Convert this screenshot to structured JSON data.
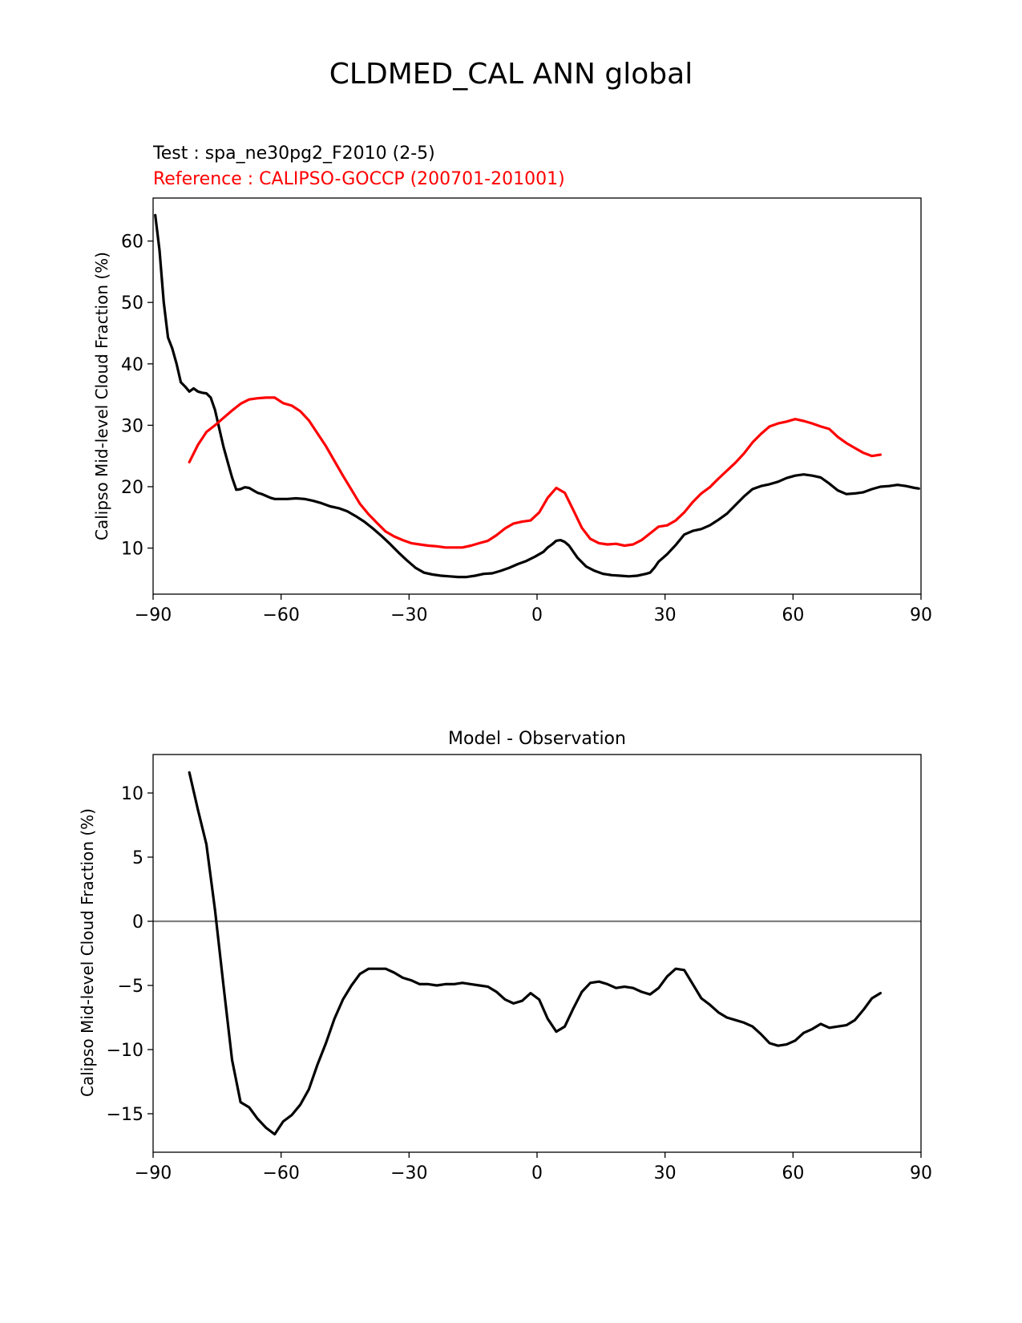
{
  "figure": {
    "title": "CLDMED_CAL ANN global",
    "colors": {
      "test": "#000000",
      "reference": "#ff0000",
      "zero_line": "#808080"
    }
  },
  "chart_data": [
    {
      "type": "line",
      "test_label": "Test : spa_ne30pg2_F2010 (2-5)",
      "reference_label": "Reference : CALIPSO-GOCCP (200701-201001)",
      "xlabel": "",
      "ylabel": "Calipso Mid-level Cloud Fraction (%)",
      "xlim": [
        -90,
        90
      ],
      "ylim": [
        2.5,
        67
      ],
      "xticks": [
        -90,
        -60,
        -30,
        0,
        30,
        60,
        90
      ],
      "yticks": [
        10,
        20,
        30,
        40,
        50,
        60
      ],
      "series": [
        {
          "name": "test",
          "x": [
            -89.5,
            -88.5,
            -87.5,
            -86.5,
            -85.5,
            -84.5,
            -83.5,
            -82.5,
            -81.5,
            -80.5,
            -79.5,
            -78.5,
            -77.5,
            -76.5,
            -75.5,
            -74.5,
            -73.5,
            -72.5,
            -71.5,
            -70.5,
            -69.5,
            -68.5,
            -67.5,
            -66.5,
            -65.5,
            -64.5,
            -63.5,
            -62.5,
            -61.5,
            -60.5,
            -58.5,
            -56.5,
            -54.5,
            -52.5,
            -50.5,
            -48.5,
            -46.5,
            -44.5,
            -42.5,
            -40.5,
            -38.5,
            -36.5,
            -34.5,
            -32.5,
            -30.5,
            -28.5,
            -26.5,
            -24.5,
            -22.5,
            -20.5,
            -18.5,
            -16.5,
            -14.5,
            -12.5,
            -10.5,
            -8.5,
            -6.5,
            -4.5,
            -2.5,
            -0.5,
            1.5,
            2.5,
            3.5,
            4.5,
            5.5,
            6.5,
            7.5,
            9.5,
            11.5,
            13.5,
            15.5,
            17.5,
            19.5,
            21.5,
            23.5,
            25.5,
            26.5,
            27.5,
            28.5,
            30.5,
            32.5,
            34.5,
            36.5,
            38.5,
            40.5,
            42.5,
            44.5,
            46.5,
            48.5,
            50.5,
            52.5,
            54.5,
            56.5,
            58.5,
            60.5,
            62.5,
            64.5,
            66.5,
            68.5,
            70.5,
            72.5,
            74.5,
            76.5,
            78.5,
            80.5,
            82.5,
            84.5,
            86.5,
            88.5,
            89.5
          ],
          "values": [
            64.2,
            58.5,
            50,
            44.3,
            42.5,
            40,
            37,
            36.3,
            35.5,
            36,
            35.5,
            35.3,
            35.2,
            34.5,
            32.5,
            29.5,
            26.5,
            24,
            21.5,
            19.5,
            19.6,
            19.9,
            19.8,
            19.4,
            19,
            18.8,
            18.5,
            18.2,
            18,
            18,
            18,
            18.1,
            18,
            17.7,
            17.3,
            16.8,
            16.5,
            16,
            15.2,
            14.3,
            13.2,
            12,
            10.7,
            9.3,
            8,
            6.8,
            6,
            5.7,
            5.5,
            5.4,
            5.3,
            5.3,
            5.5,
            5.8,
            5.9,
            6.3,
            6.8,
            7.4,
            7.9,
            8.6,
            9.4,
            10.1,
            10.6,
            11.2,
            11.3,
            11,
            10.4,
            8.4,
            7,
            6.3,
            5.8,
            5.6,
            5.5,
            5.4,
            5.5,
            5.8,
            6,
            6.8,
            7.8,
            9,
            10.5,
            12.2,
            12.8,
            13.1,
            13.7,
            14.6,
            15.6,
            17,
            18.4,
            19.6,
            20.1,
            20.4,
            20.8,
            21.4,
            21.8,
            22,
            21.8,
            21.5,
            20.5,
            19.4,
            18.8,
            18.9,
            19.1,
            19.6,
            20,
            20.1,
            20.3,
            20.1,
            19.8,
            19.7
          ]
        },
        {
          "name": "reference",
          "x": [
            -81.5,
            -79.5,
            -77.5,
            -75.5,
            -73.5,
            -71.5,
            -69.5,
            -67.5,
            -65.5,
            -63.5,
            -61.5,
            -59.5,
            -57.5,
            -55.5,
            -53.5,
            -51.5,
            -49.5,
            -47.5,
            -45.5,
            -43.5,
            -41.5,
            -39.5,
            -37.5,
            -35.5,
            -33.5,
            -31.5,
            -29.5,
            -27.5,
            -25.5,
            -23.5,
            -21.5,
            -19.5,
            -17.5,
            -15.5,
            -13.5,
            -11.5,
            -9.5,
            -7.5,
            -5.5,
            -3.5,
            -1.5,
            0.5,
            2.5,
            4.5,
            6.5,
            8.5,
            10.5,
            12.5,
            14.5,
            16.5,
            18.5,
            20.5,
            22.5,
            24.5,
            26.5,
            28.5,
            30.5,
            32.5,
            34.5,
            36.5,
            38.5,
            40.5,
            42.5,
            44.5,
            46.5,
            48.5,
            50.5,
            52.5,
            54.5,
            56.5,
            58.5,
            60.5,
            62.5,
            64.5,
            66.5,
            68.5,
            70.5,
            72.5,
            74.5,
            76.5,
            78.5,
            80.5
          ],
          "values": [
            24,
            26.8,
            28.9,
            30,
            31.2,
            32.4,
            33.5,
            34.2,
            34.4,
            34.5,
            34.5,
            33.6,
            33.2,
            32.3,
            30.8,
            28.7,
            26.6,
            24.2,
            21.8,
            19.5,
            17.2,
            15.5,
            14.1,
            12.7,
            11.9,
            11.3,
            10.8,
            10.6,
            10.4,
            10.3,
            10.1,
            10.1,
            10.1,
            10.4,
            10.8,
            11.2,
            12.1,
            13.2,
            14,
            14.3,
            14.5,
            15.8,
            18.2,
            19.8,
            19,
            16.2,
            13.3,
            11.5,
            10.8,
            10.6,
            10.7,
            10.4,
            10.6,
            11.3,
            12.4,
            13.5,
            13.7,
            14.5,
            15.8,
            17.5,
            18.9,
            19.9,
            21.3,
            22.6,
            23.9,
            25.4,
            27.2,
            28.6,
            29.8,
            30.3,
            30.6,
            31,
            30.7,
            30.3,
            29.8,
            29.4,
            28.1,
            27.1,
            26.3,
            25.5,
            25,
            25.2
          ]
        }
      ]
    },
    {
      "type": "line",
      "title": "Model - Observation",
      "xlabel": "",
      "ylabel": "Calipso Mid-level Cloud Fraction (%)",
      "xlim": [
        -90,
        90
      ],
      "ylim": [
        -18,
        13
      ],
      "xticks": [
        -90,
        -60,
        -30,
        0,
        30,
        60,
        90
      ],
      "yticks": [
        10,
        5,
        0,
        -5,
        -10,
        -15
      ],
      "hline": 0,
      "series": [
        {
          "name": "difference",
          "x": [
            -81.5,
            -79.5,
            -77.5,
            -75.5,
            -73.5,
            -71.5,
            -69.5,
            -67.5,
            -65.5,
            -63.5,
            -61.5,
            -59.5,
            -57.5,
            -55.5,
            -53.5,
            -51.5,
            -49.5,
            -47.5,
            -45.5,
            -43.5,
            -41.5,
            -39.5,
            -37.5,
            -35.5,
            -33.5,
            -31.5,
            -29.5,
            -27.5,
            -25.5,
            -23.5,
            -21.5,
            -19.5,
            -17.5,
            -15.5,
            -13.5,
            -11.5,
            -9.5,
            -7.5,
            -5.5,
            -3.5,
            -1.5,
            0.5,
            2.5,
            4.5,
            6.5,
            8.5,
            10.5,
            12.5,
            14.5,
            16.5,
            18.5,
            20.5,
            22.5,
            24.5,
            26.5,
            28.5,
            30.5,
            32.5,
            34.5,
            36.5,
            38.5,
            40.5,
            42.5,
            44.5,
            46.5,
            48.5,
            50.5,
            52.5,
            54.5,
            56.5,
            58.5,
            60.5,
            62.5,
            64.5,
            66.5,
            68.5,
            70.5,
            72.5,
            74.5,
            76.5,
            78.5,
            80.5
          ],
          "values": [
            11.6,
            8.7,
            6,
            0.9,
            -5,
            -10.8,
            -14.1,
            -14.5,
            -15.4,
            -16.1,
            -16.6,
            -15.6,
            -15.1,
            -14.3,
            -13.1,
            -11.2,
            -9.5,
            -7.6,
            -6.1,
            -5,
            -4.1,
            -3.7,
            -3.7,
            -3.7,
            -4,
            -4.4,
            -4.6,
            -4.9,
            -4.9,
            -5,
            -4.9,
            -4.9,
            -4.8,
            -4.9,
            -5,
            -5.1,
            -5.5,
            -6.1,
            -6.4,
            -6.2,
            -5.6,
            -6.1,
            -7.6,
            -8.6,
            -8.2,
            -6.8,
            -5.5,
            -4.8,
            -4.7,
            -4.9,
            -5.2,
            -5.1,
            -5.2,
            -5.5,
            -5.7,
            -5.2,
            -4.3,
            -3.7,
            -3.8,
            -4.9,
            -6,
            -6.5,
            -7.1,
            -7.5,
            -7.7,
            -7.9,
            -8.2,
            -8.8,
            -9.5,
            -9.7,
            -9.6,
            -9.3,
            -8.7,
            -8.4,
            -8,
            -8.3,
            -8.2,
            -8.1,
            -7.7,
            -6.9,
            -6,
            -5.6
          ]
        }
      ]
    }
  ]
}
